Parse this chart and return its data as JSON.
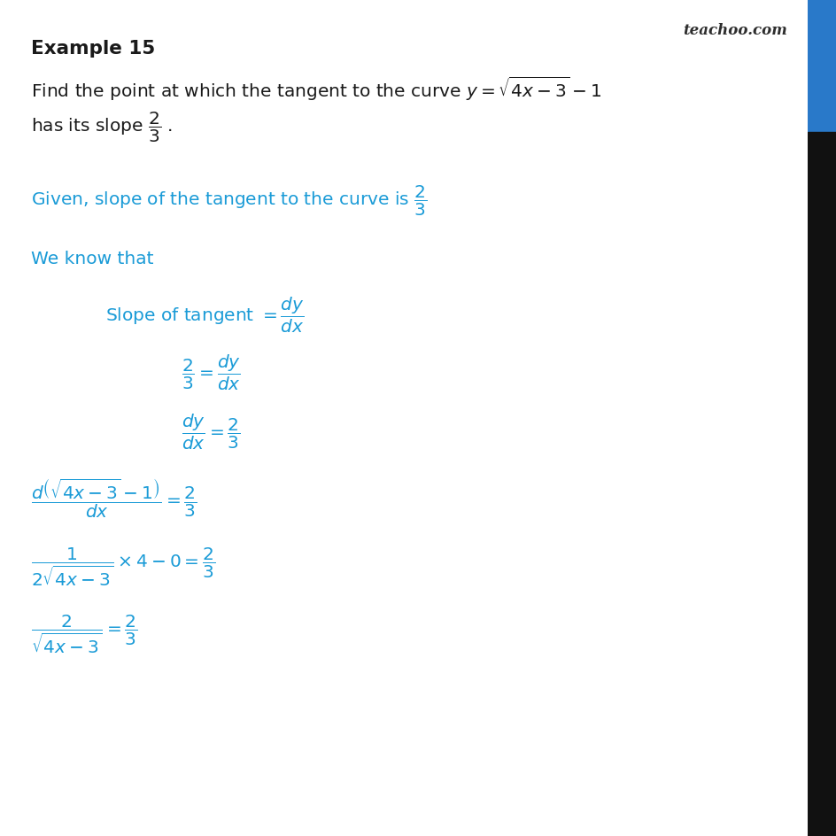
{
  "bg_color": "#ffffff",
  "black_color": "#1a1a1a",
  "blue_color": "#1a9bd7",
  "watermark": "teachoo.com",
  "watermark_color": "#2d2d2d",
  "right_bar_blue": "#2979c9",
  "right_bar_black": "#111111",
  "figsize": [
    9.45,
    9.45
  ],
  "dpi": 100
}
